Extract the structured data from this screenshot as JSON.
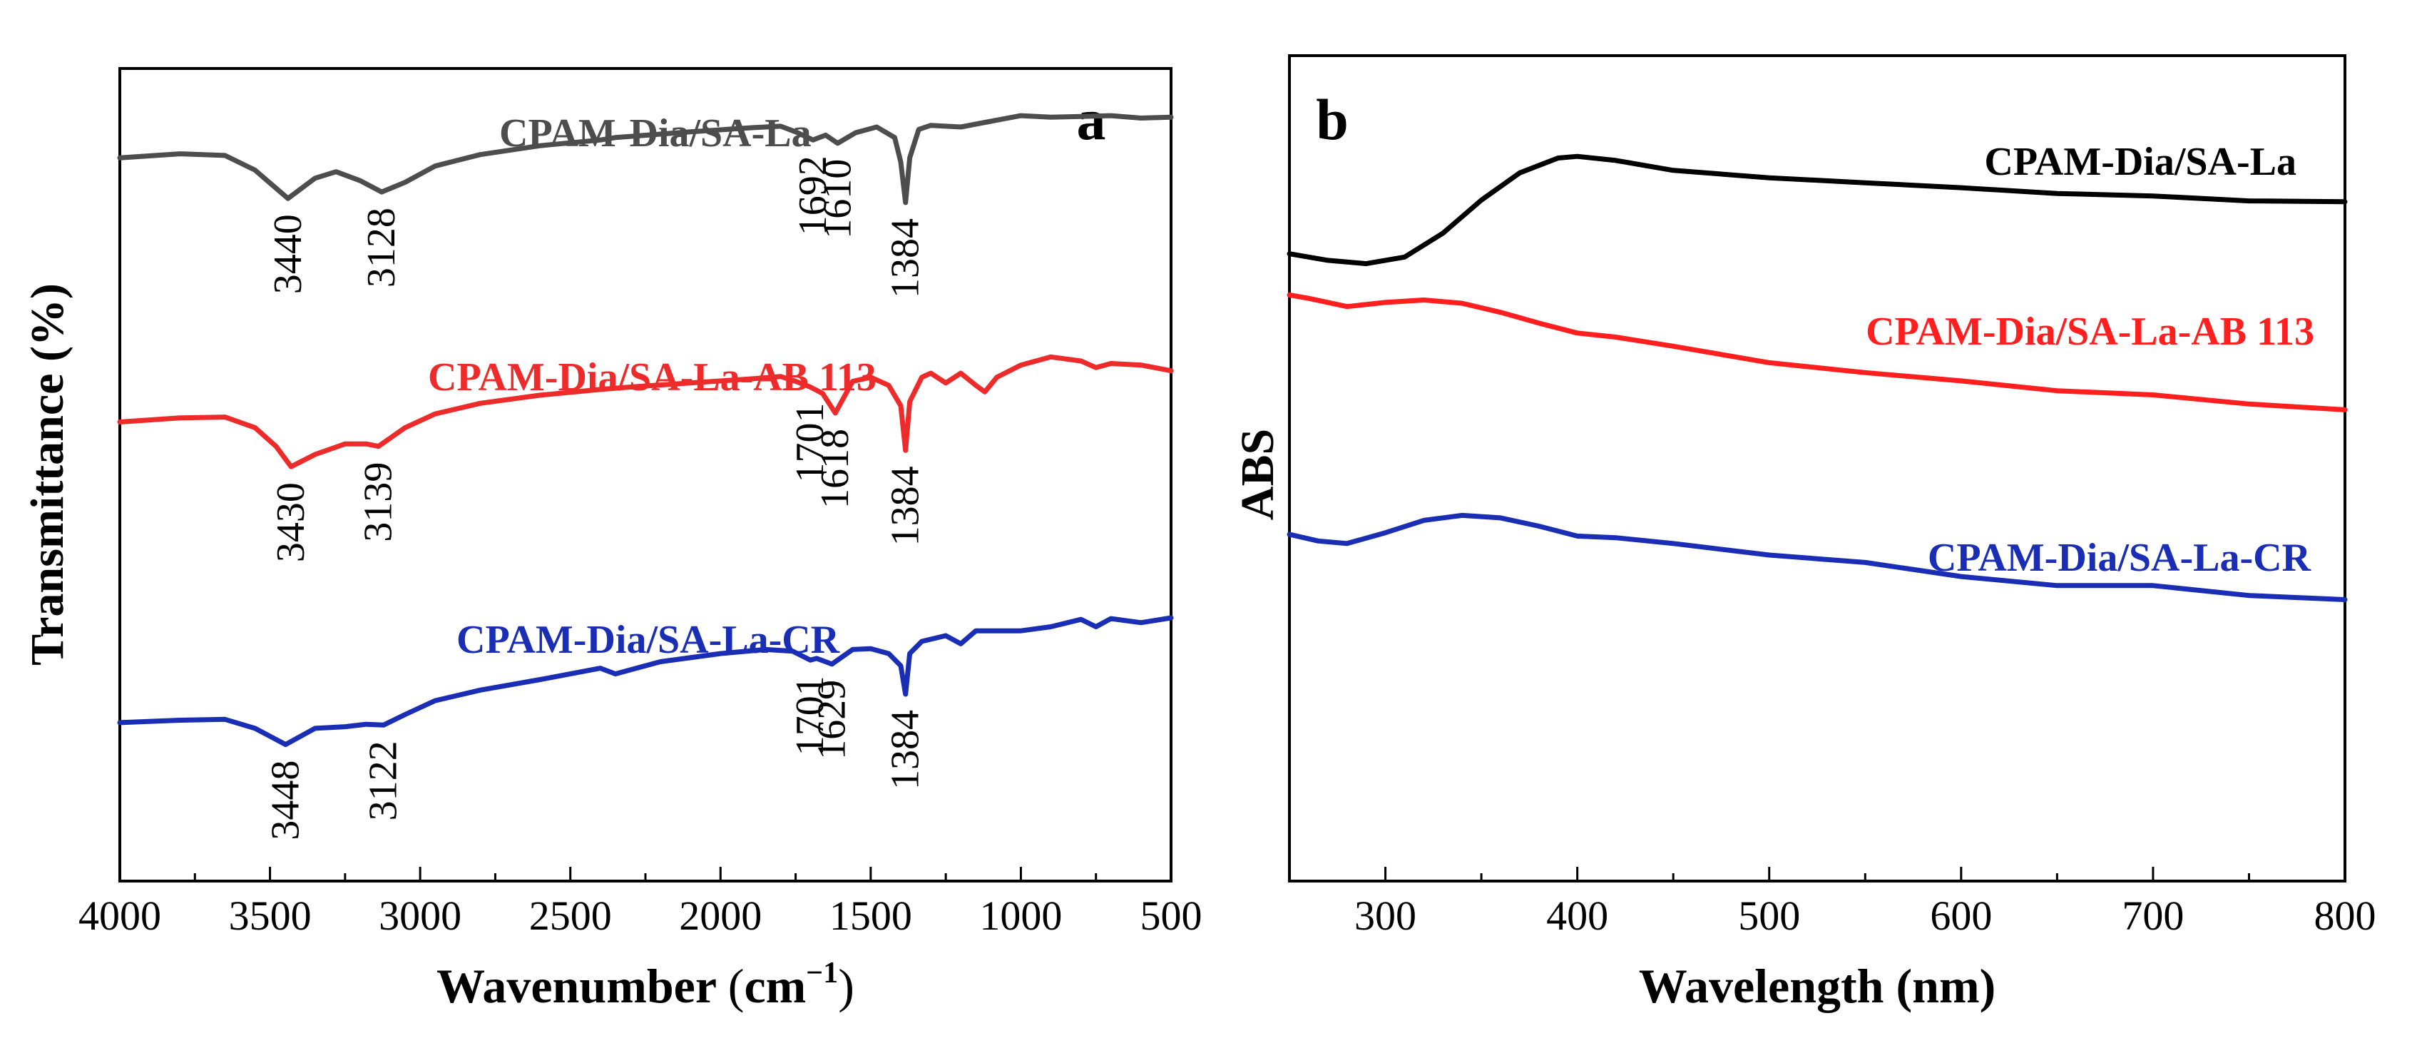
{
  "chart_data": [
    {
      "panel": "a",
      "type": "line",
      "xlabel": "Wavenumber (cm⁻¹)",
      "ylabel": "Transmittance (%)",
      "xlim": [
        4000,
        500
      ],
      "x_ticks": [
        4000,
        3500,
        3000,
        2500,
        2000,
        1500,
        1000,
        500
      ],
      "ylim": [
        0,
        100
      ],
      "series": [
        {
          "name": "CPAM-Dia/SA-La",
          "color": "#4d4d4d",
          "x": [
            4000,
            3800,
            3650,
            3550,
            3440,
            3350,
            3280,
            3200,
            3128,
            3050,
            2950,
            2800,
            2600,
            2400,
            2350,
            2100,
            1900,
            1800,
            1750,
            1692,
            1650,
            1610,
            1550,
            1480,
            1420,
            1400,
            1384,
            1370,
            1340,
            1300,
            1200,
            1100,
            1000,
            900,
            800,
            700,
            600,
            500
          ],
          "y": [
            89.0,
            89.5,
            89.3,
            87.5,
            84.0,
            86.5,
            87.3,
            86.2,
            84.8,
            86.0,
            88.0,
            89.4,
            90.5,
            91.2,
            91.5,
            92.2,
            92.7,
            92.9,
            92.2,
            91.2,
            91.8,
            90.8,
            92.1,
            92.8,
            91.5,
            88.5,
            83.5,
            89.0,
            92.5,
            93.0,
            92.8,
            93.5,
            94.2,
            94.0,
            94.1,
            94.2,
            93.9,
            94.0
          ]
        },
        {
          "name": "CPAM-Dia/SA-La-AB 113",
          "color": "#ee2b2b",
          "x": [
            4000,
            3800,
            3650,
            3550,
            3480,
            3430,
            3350,
            3250,
            3180,
            3139,
            3050,
            2950,
            2800,
            2600,
            2400,
            2300,
            2100,
            1900,
            1800,
            1750,
            1701,
            1660,
            1618,
            1560,
            1500,
            1440,
            1400,
            1384,
            1370,
            1330,
            1300,
            1250,
            1200,
            1150,
            1120,
            1080,
            1000,
            900,
            800,
            750,
            700,
            600,
            500
          ],
          "y": [
            56.5,
            57.0,
            57.1,
            55.8,
            53.5,
            51.0,
            52.5,
            53.8,
            53.8,
            53.5,
            55.8,
            57.5,
            58.8,
            59.8,
            60.5,
            60.8,
            61.3,
            61.8,
            62.1,
            61.5,
            60.8,
            60.0,
            57.6,
            61.5,
            62.0,
            61.0,
            58.5,
            53.0,
            59.0,
            62.0,
            62.5,
            61.3,
            62.5,
            61.0,
            60.2,
            62.0,
            63.5,
            64.5,
            64.0,
            63.2,
            63.7,
            63.5,
            62.8
          ]
        },
        {
          "name": "CPAM-Dia/SA-La-CR",
          "color": "#1a2eb5",
          "x": [
            4000,
            3800,
            3650,
            3550,
            3448,
            3350,
            3250,
            3180,
            3122,
            3050,
            2950,
            2800,
            2600,
            2400,
            2350,
            2200,
            2000,
            1850,
            1760,
            1701,
            1680,
            1629,
            1560,
            1500,
            1440,
            1400,
            1384,
            1370,
            1330,
            1250,
            1200,
            1150,
            1100,
            1000,
            900,
            800,
            750,
            700,
            600,
            500
          ],
          "y": [
            19.5,
            19.8,
            19.9,
            18.8,
            16.8,
            18.8,
            19.0,
            19.3,
            19.2,
            20.5,
            22.2,
            23.5,
            24.8,
            26.2,
            25.5,
            27.0,
            28.0,
            28.5,
            28.3,
            27.2,
            27.4,
            26.7,
            28.5,
            28.6,
            28.0,
            26.5,
            23.0,
            28.0,
            29.5,
            30.2,
            29.2,
            30.8,
            30.8,
            30.8,
            31.3,
            32.2,
            31.3,
            32.3,
            31.8,
            32.4
          ]
        }
      ],
      "peak_labels": [
        {
          "series": "CPAM-Dia/SA-La",
          "labels": [
            "3440",
            "3128",
            "1692",
            "1610",
            "1384"
          ]
        },
        {
          "series": "CPAM-Dia/SA-La-AB 113",
          "labels": [
            "3430",
            "3139",
            "1701",
            "1618",
            "1384"
          ]
        },
        {
          "series": "CPAM-Dia/SA-La-CR",
          "labels": [
            "3448",
            "3122",
            "1701",
            "1629",
            "1384"
          ]
        }
      ],
      "annotations": [
        "a"
      ]
    },
    {
      "panel": "b",
      "type": "line",
      "xlabel": "Wavelength (nm)",
      "ylabel": "ABS",
      "xlim": [
        250,
        800
      ],
      "x_ticks": [
        300,
        400,
        500,
        600,
        700,
        800
      ],
      "ylim": [
        0,
        100
      ],
      "series": [
        {
          "name": "CPAM-Dia/SA-La",
          "color": "#000000",
          "x": [
            250,
            270,
            290,
            310,
            330,
            350,
            370,
            390,
            400,
            420,
            450,
            500,
            550,
            600,
            650,
            700,
            750,
            800
          ],
          "y": [
            76.0,
            75.2,
            74.8,
            75.6,
            78.5,
            82.5,
            85.8,
            87.6,
            87.8,
            87.3,
            86.1,
            85.2,
            84.6,
            84.0,
            83.3,
            83.0,
            82.4,
            82.3
          ]
        },
        {
          "name": "CPAM-Dia/SA-La-AB 113",
          "color": "#ff1f1f",
          "x": [
            250,
            260,
            280,
            300,
            320,
            340,
            360,
            380,
            400,
            420,
            450,
            500,
            550,
            600,
            650,
            700,
            750,
            800
          ],
          "y": [
            71.0,
            70.6,
            69.6,
            70.1,
            70.4,
            70.0,
            68.9,
            67.6,
            66.4,
            65.9,
            64.8,
            62.8,
            61.6,
            60.6,
            59.4,
            58.9,
            57.8,
            57.1
          ]
        },
        {
          "name": "CPAM-Dia/SA-La-CR",
          "color": "#1a2eb5",
          "x": [
            250,
            265,
            280,
            300,
            320,
            340,
            360,
            380,
            400,
            420,
            450,
            500,
            550,
            600,
            650,
            700,
            750,
            800
          ],
          "y": [
            42.0,
            41.2,
            40.9,
            42.2,
            43.7,
            44.3,
            44.0,
            43.0,
            41.8,
            41.6,
            40.9,
            39.5,
            38.6,
            36.9,
            35.8,
            35.8,
            34.6,
            34.1
          ]
        }
      ],
      "annotations": [
        "b"
      ]
    }
  ]
}
